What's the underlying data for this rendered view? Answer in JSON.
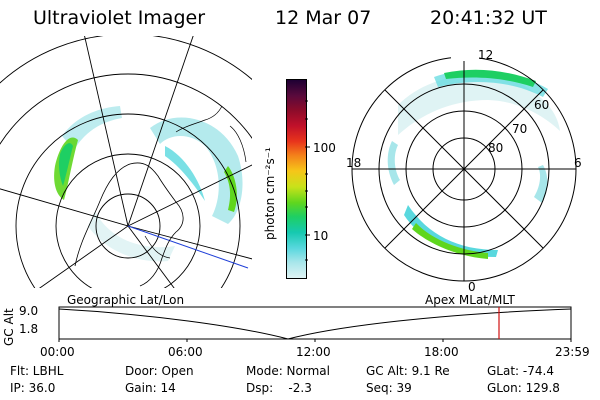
{
  "header": {
    "instrument": "Ultraviolet Imager",
    "date": "12 Mar 07",
    "time": "20:41:32 UT"
  },
  "colorbar": {
    "unit_label": "photon cm⁻²s⁻¹",
    "ticks": [
      "100",
      "10"
    ],
    "colors": [
      "#1e0033",
      "#5a0a3c",
      "#8a0b2a",
      "#c0102a",
      "#e8341c",
      "#f4801a",
      "#f6c619",
      "#c8e21a",
      "#5fd61e",
      "#1ecf63",
      "#16c9b0",
      "#59d8de",
      "#a7e6ea",
      "#dff3f4"
    ]
  },
  "polar_plot": {
    "mlt_labels": [
      "12",
      "18",
      "6",
      "0"
    ],
    "lat_labels": [
      "60",
      "70",
      "80"
    ]
  },
  "timeline": {
    "left_label": "Geographic Lat/Lon",
    "right_label": "Apex MLat/MLT",
    "axis_title": "GC Alt",
    "y_ticks": [
      "9.0",
      "1.8"
    ],
    "x_ticks": [
      "00:00",
      "06:00",
      "12:00",
      "18:00",
      "23:59"
    ]
  },
  "info": {
    "filter": "Flt: LBHL",
    "ip": "IP: 36.0",
    "door": "Door: Open",
    "gain": "Gain: 14",
    "mode": "Mode: Normal",
    "dsp": "Dsp:    -2.3",
    "gc_alt": "GC Alt: 9.1 Re",
    "seq": "Seq: 39",
    "glat": "GLat: -74.4",
    "glon": "GLon: 129.8"
  }
}
